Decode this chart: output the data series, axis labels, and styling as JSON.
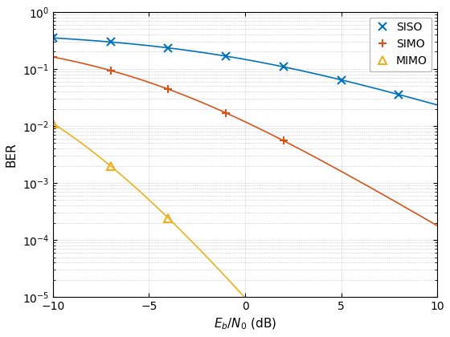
{
  "title": "",
  "xlabel": "$E_b/N_0$ (dB)",
  "ylabel": "BER",
  "xlim": [
    -10,
    10
  ],
  "ylim_log": [
    -5,
    0
  ],
  "grid": true,
  "background_color": "#ffffff",
  "siso_color": "#0072BD",
  "simo_color": "#D95319",
  "mimo_color": "#EDB120",
  "line_width": 1.2,
  "marker_size": 7,
  "legend_labels": [
    "SISO",
    "SIMO",
    "MIMO"
  ],
  "siso_markers_db": [
    -10,
    -7,
    -4,
    -1,
    2,
    5,
    8
  ],
  "simo_markers_db": [
    -10,
    -7,
    -4,
    -1,
    2
  ],
  "mimo_markers_db": [
    -10,
    -7,
    -4
  ]
}
